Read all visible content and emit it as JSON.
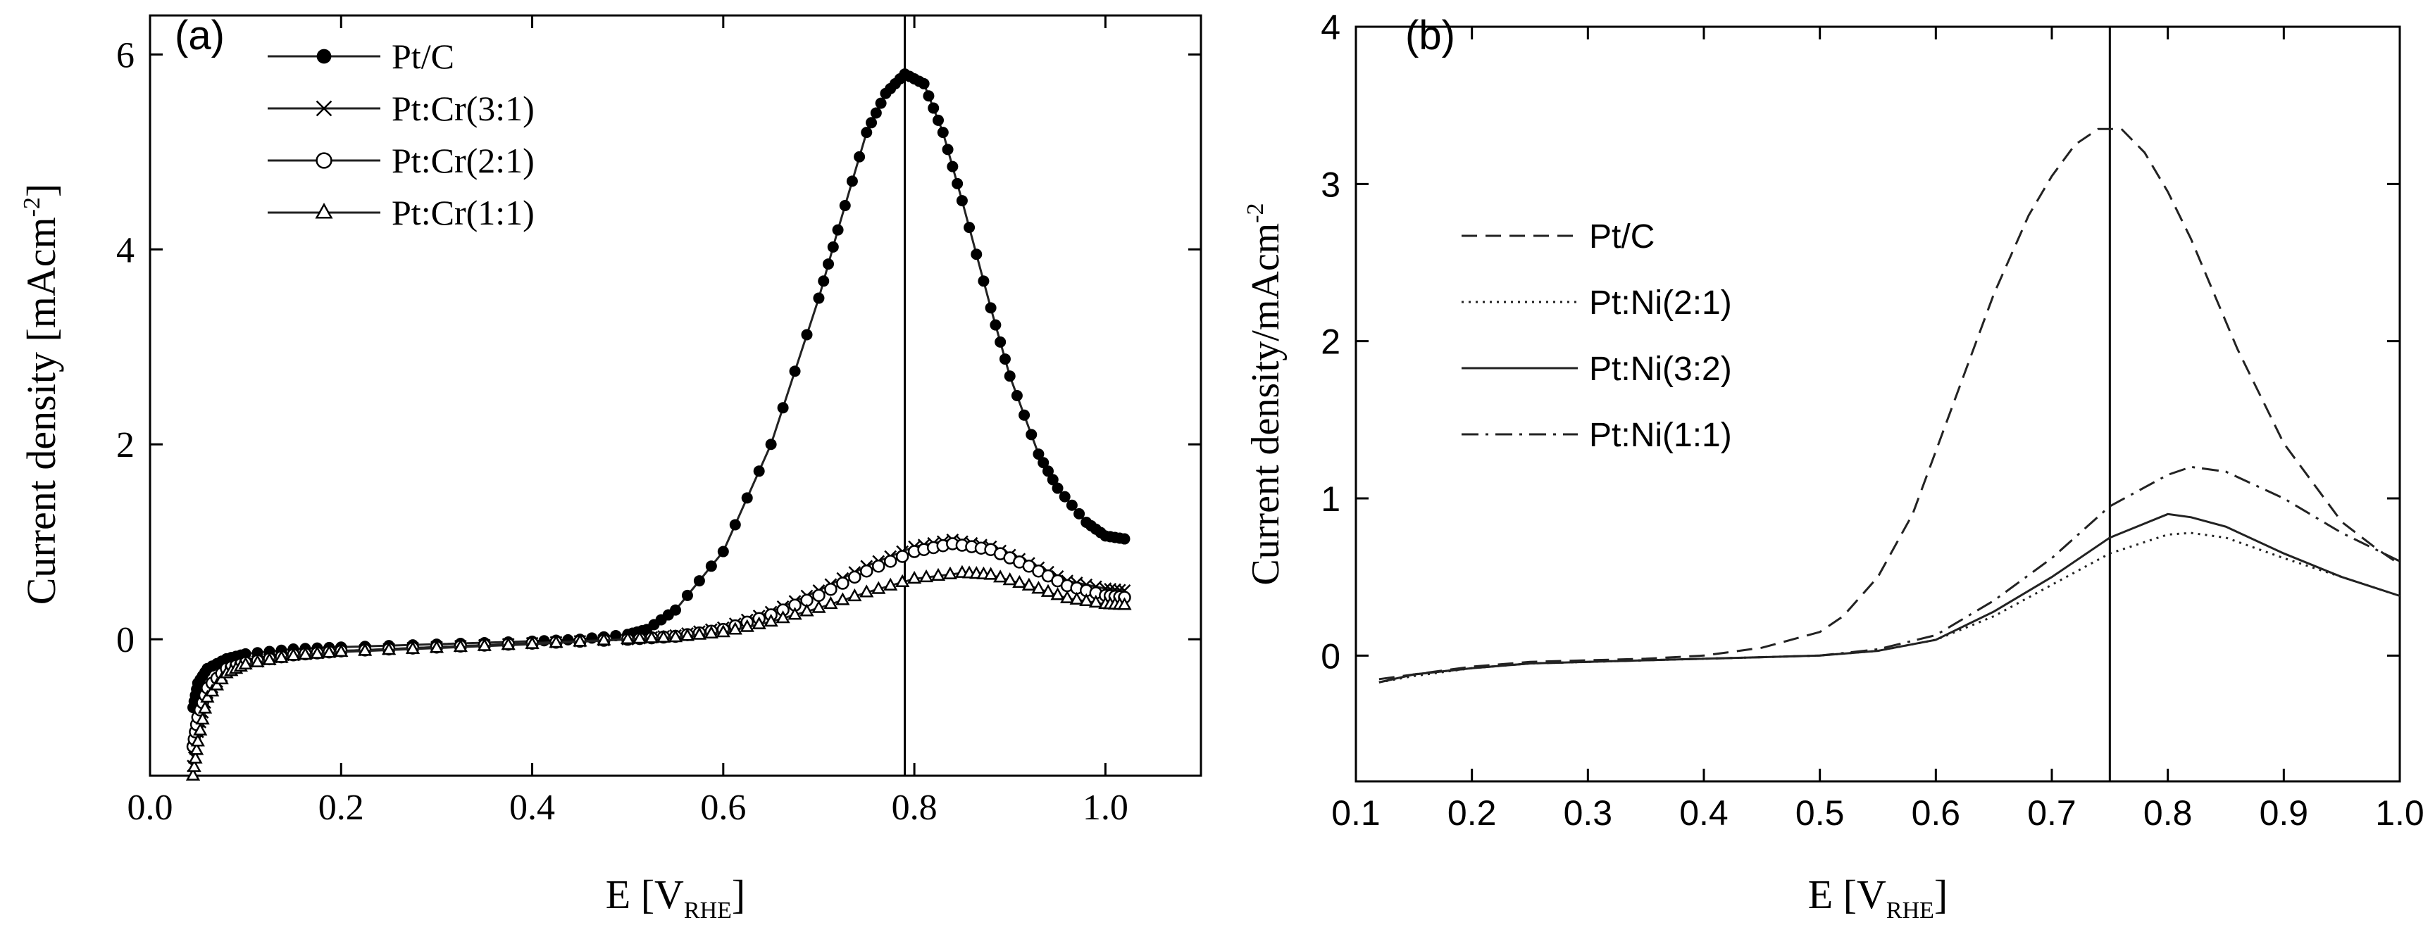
{
  "chart_data": [
    {
      "panel": "(a)",
      "type": "line",
      "xlabel": {
        "main": "E [V",
        "sub": "RHE",
        "close": "]"
      },
      "ylabel": {
        "main": "Current density [mAcm",
        "sup": "-2",
        "close": "]"
      },
      "xlim": [
        0.0,
        1.1
      ],
      "ylim": [
        -1.4,
        6.4
      ],
      "xticks": [
        0.0,
        0.2,
        0.4,
        0.6,
        0.8,
        1.0
      ],
      "xtick_labels": [
        "0.0",
        "0.2",
        "0.4",
        "0.6",
        "0.8",
        "1.0"
      ],
      "yticks": [
        0,
        2,
        4,
        6
      ],
      "ytick_labels": [
        "0",
        "2",
        "4",
        "6"
      ],
      "vline_x": 0.79,
      "legend_position": "top-left",
      "series": [
        {
          "name": "Pt/C",
          "marker": "filled-circle",
          "x": [
            0.045,
            0.05,
            0.06,
            0.08,
            0.1,
            0.15,
            0.2,
            0.3,
            0.4,
            0.45,
            0.5,
            0.52,
            0.55,
            0.6,
            0.65,
            0.7,
            0.72,
            0.75,
            0.77,
            0.79,
            0.81,
            0.83,
            0.85,
            0.88,
            0.9,
            0.93,
            0.95,
            0.98,
            1.0,
            1.02
          ],
          "y": [
            -0.7,
            -0.45,
            -0.3,
            -0.2,
            -0.15,
            -0.1,
            -0.08,
            -0.05,
            -0.02,
            0.0,
            0.05,
            0.1,
            0.3,
            0.9,
            2.0,
            3.5,
            4.2,
            5.2,
            5.6,
            5.8,
            5.7,
            5.2,
            4.5,
            3.4,
            2.7,
            1.9,
            1.55,
            1.2,
            1.06,
            1.03
          ]
        },
        {
          "name": "Pt:Cr(3:1)",
          "marker": "cross",
          "x": [
            0.045,
            0.05,
            0.06,
            0.08,
            0.1,
            0.15,
            0.2,
            0.3,
            0.4,
            0.5,
            0.55,
            0.6,
            0.65,
            0.7,
            0.75,
            0.8,
            0.84,
            0.88,
            0.92,
            0.96,
            1.0,
            1.02
          ],
          "y": [
            -1.3,
            -0.95,
            -0.55,
            -0.32,
            -0.25,
            -0.16,
            -0.12,
            -0.08,
            -0.04,
            0.0,
            0.04,
            0.12,
            0.28,
            0.5,
            0.75,
            0.95,
            1.02,
            0.95,
            0.78,
            0.6,
            0.52,
            0.5
          ]
        },
        {
          "name": "Pt:Cr(2:1)",
          "marker": "open-circle",
          "x": [
            0.045,
            0.05,
            0.06,
            0.08,
            0.1,
            0.15,
            0.2,
            0.3,
            0.4,
            0.5,
            0.55,
            0.6,
            0.65,
            0.7,
            0.75,
            0.8,
            0.84,
            0.88,
            0.92,
            0.96,
            1.0,
            1.02
          ],
          "y": [
            -1.1,
            -0.8,
            -0.5,
            -0.3,
            -0.24,
            -0.16,
            -0.12,
            -0.08,
            -0.04,
            0.0,
            0.03,
            0.1,
            0.25,
            0.45,
            0.7,
            0.9,
            0.98,
            0.92,
            0.75,
            0.55,
            0.45,
            0.43
          ]
        },
        {
          "name": "Pt:Cr(1:1)",
          "marker": "open-triangle",
          "x": [
            0.045,
            0.05,
            0.06,
            0.08,
            0.1,
            0.15,
            0.2,
            0.3,
            0.4,
            0.5,
            0.55,
            0.6,
            0.65,
            0.7,
            0.75,
            0.8,
            0.85,
            0.88,
            0.92,
            0.96,
            1.0,
            1.02
          ],
          "y": [
            -1.4,
            -1.05,
            -0.6,
            -0.35,
            -0.26,
            -0.17,
            -0.13,
            -0.09,
            -0.05,
            0.0,
            0.02,
            0.07,
            0.18,
            0.32,
            0.48,
            0.62,
            0.68,
            0.66,
            0.55,
            0.42,
            0.36,
            0.35
          ]
        }
      ]
    },
    {
      "panel": "(b)",
      "type": "line",
      "xlabel": {
        "main": "E [V",
        "sub": "RHE",
        "close": "]"
      },
      "ylabel": {
        "main": "Current density/mAcm",
        "sup": "-2",
        "close": ""
      },
      "xlim": [
        0.1,
        1.0
      ],
      "ylim": [
        -0.8,
        4.0
      ],
      "xticks": [
        0.1,
        0.2,
        0.3,
        0.4,
        0.5,
        0.6,
        0.7,
        0.8,
        0.9,
        1.0
      ],
      "xtick_labels": [
        "0.1",
        "0.2",
        "0.3",
        "0.4",
        "0.5",
        "0.6",
        "0.7",
        "0.8",
        "0.9",
        "1.0"
      ],
      "yticks": [
        0,
        1,
        2,
        3,
        4
      ],
      "ytick_labels": [
        "0",
        "1",
        "2",
        "3",
        "4"
      ],
      "vline_x": 0.75,
      "legend_position": "left",
      "series": [
        {
          "name": "Pt/C",
          "style": "dashed",
          "x": [
            0.12,
            0.15,
            0.2,
            0.25,
            0.3,
            0.35,
            0.4,
            0.45,
            0.5,
            0.52,
            0.55,
            0.58,
            0.6,
            0.63,
            0.65,
            0.68,
            0.7,
            0.72,
            0.74,
            0.76,
            0.78,
            0.8,
            0.82,
            0.84,
            0.86,
            0.88,
            0.9,
            0.93,
            0.95,
            0.98,
            1.0
          ],
          "y": [
            -0.15,
            -0.12,
            -0.07,
            -0.04,
            -0.03,
            -0.02,
            0.0,
            0.05,
            0.15,
            0.25,
            0.5,
            0.9,
            1.3,
            1.9,
            2.3,
            2.8,
            3.05,
            3.25,
            3.35,
            3.35,
            3.2,
            2.95,
            2.65,
            2.3,
            1.95,
            1.65,
            1.35,
            1.05,
            0.85,
            0.68,
            0.58
          ]
        },
        {
          "name": "Pt:Ni(2:1)",
          "style": "dotted",
          "x": [
            0.12,
            0.15,
            0.2,
            0.25,
            0.3,
            0.35,
            0.4,
            0.45,
            0.5,
            0.55,
            0.6,
            0.65,
            0.7,
            0.75,
            0.8,
            0.82,
            0.85,
            0.9,
            0.95,
            1.0
          ],
          "y": [
            -0.17,
            -0.13,
            -0.08,
            -0.05,
            -0.04,
            -0.03,
            -0.02,
            -0.01,
            0.0,
            0.03,
            0.1,
            0.25,
            0.45,
            0.65,
            0.77,
            0.78,
            0.75,
            0.62,
            0.5,
            0.38
          ]
        },
        {
          "name": "Pt:Ni(3:2)",
          "style": "solid",
          "x": [
            0.12,
            0.15,
            0.2,
            0.25,
            0.3,
            0.35,
            0.4,
            0.45,
            0.5,
            0.55,
            0.6,
            0.65,
            0.7,
            0.75,
            0.8,
            0.82,
            0.85,
            0.9,
            0.95,
            1.0
          ],
          "y": [
            -0.17,
            -0.12,
            -0.08,
            -0.05,
            -0.04,
            -0.03,
            -0.02,
            -0.01,
            0.0,
            0.03,
            0.1,
            0.28,
            0.5,
            0.75,
            0.9,
            0.88,
            0.82,
            0.65,
            0.5,
            0.38
          ]
        },
        {
          "name": "Pt:Ni(1:1)",
          "style": "dash-dot",
          "x": [
            0.12,
            0.15,
            0.2,
            0.25,
            0.3,
            0.35,
            0.4,
            0.45,
            0.5,
            0.55,
            0.6,
            0.65,
            0.7,
            0.75,
            0.8,
            0.82,
            0.85,
            0.9,
            0.95,
            1.0
          ],
          "y": [
            -0.17,
            -0.12,
            -0.08,
            -0.05,
            -0.04,
            -0.03,
            -0.02,
            -0.01,
            0.0,
            0.04,
            0.13,
            0.35,
            0.62,
            0.95,
            1.15,
            1.2,
            1.17,
            1.0,
            0.78,
            0.6
          ]
        }
      ]
    }
  ]
}
